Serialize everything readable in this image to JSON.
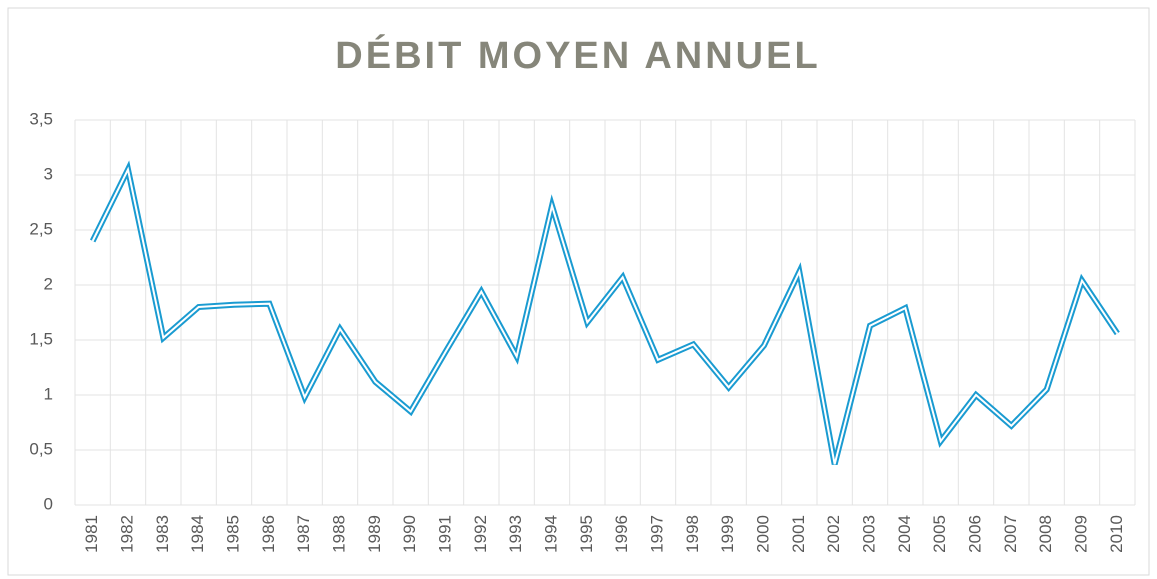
{
  "chart_data": {
    "type": "line",
    "title": "DÉBIT MOYEN ANNUEL",
    "categories": [
      "1981",
      "1982",
      "1983",
      "1984",
      "1985",
      "1986",
      "1987",
      "1988",
      "1989",
      "1990",
      "1991",
      "1992",
      "1993",
      "1994",
      "1995",
      "1996",
      "1997",
      "1998",
      "1999",
      "2000",
      "2001",
      "2002",
      "2003",
      "2004",
      "2005",
      "2006",
      "2007",
      "2008",
      "2009",
      "2010"
    ],
    "series": [
      {
        "name": "Débit moyen annuel",
        "color": "#1a9bd1",
        "values": [
          2.4,
          3.05,
          1.52,
          1.8,
          1.82,
          1.83,
          0.98,
          1.6,
          1.12,
          0.85,
          1.4,
          1.94,
          1.35,
          2.72,
          1.66,
          2.07,
          1.32,
          1.46,
          1.07,
          1.45,
          2.12,
          0.37,
          1.63,
          1.79,
          0.58,
          1.0,
          0.72,
          1.05,
          2.04,
          1.56
        ]
      }
    ],
    "ylim": [
      0,
      3.5
    ],
    "yticks": [
      0,
      {
        "value": 0.5,
        "label": "0,5"
      },
      1,
      {
        "value": 1.5,
        "label": "1,5"
      },
      2,
      {
        "value": 2.5,
        "label": "2,5"
      },
      3,
      {
        "value": 3.5,
        "label": "3,5"
      }
    ],
    "grid": true
  }
}
